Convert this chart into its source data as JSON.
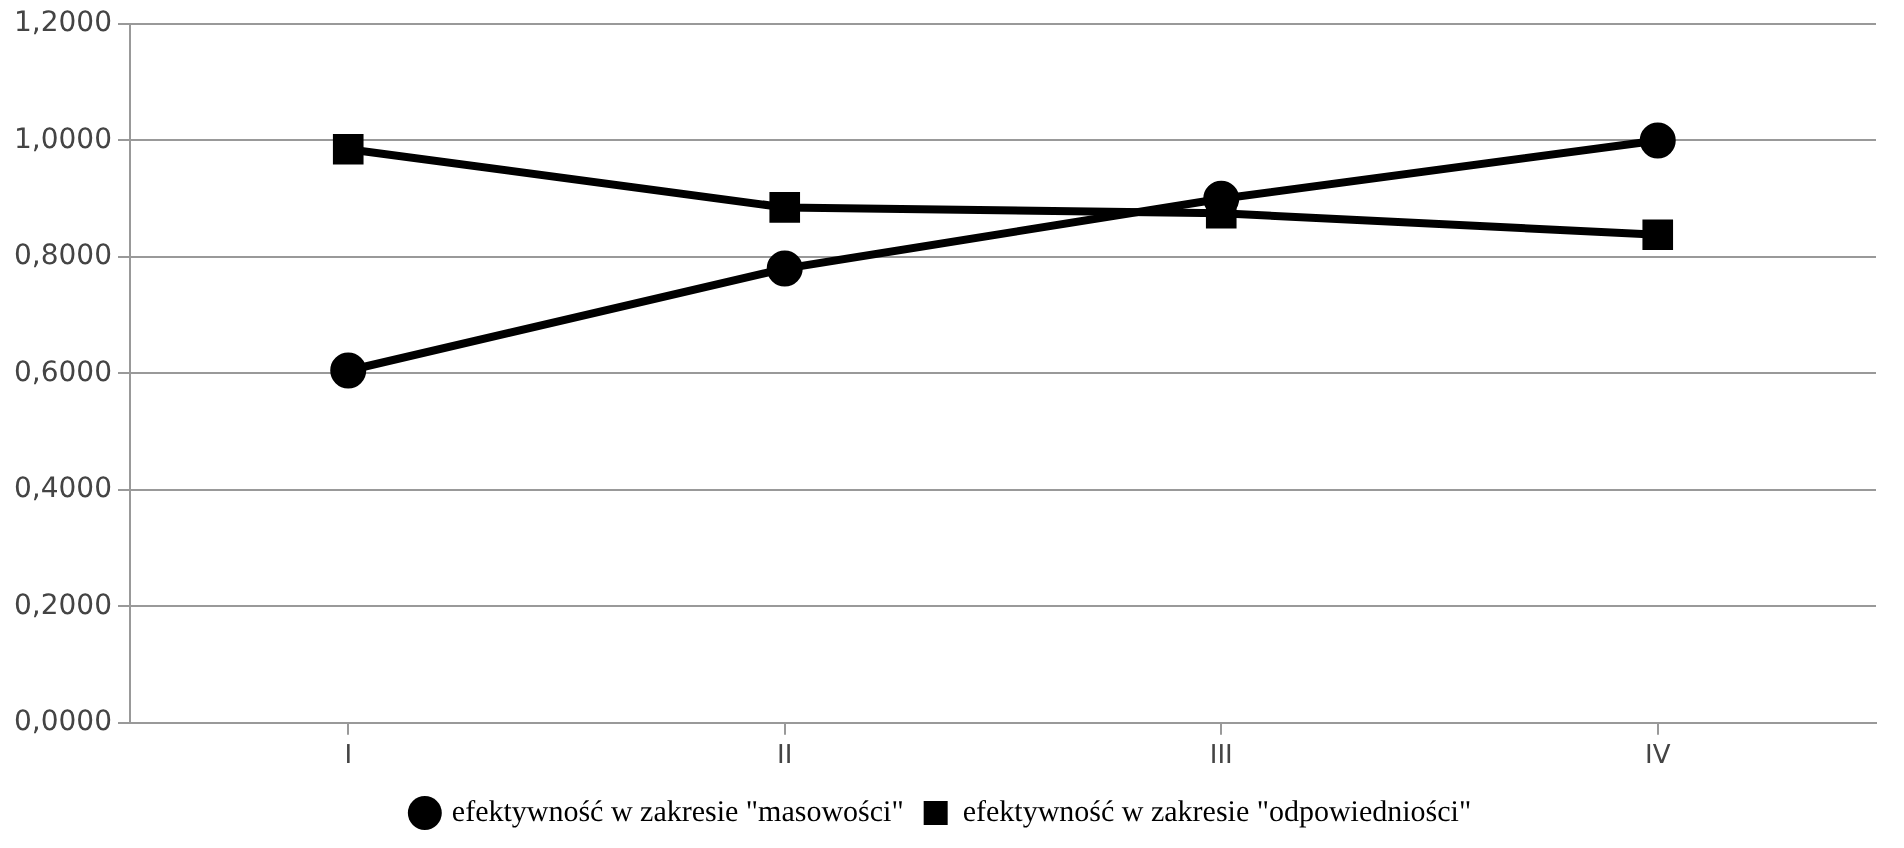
{
  "chart_data": {
    "type": "line",
    "categories": [
      "I",
      "II",
      "III",
      "IV"
    ],
    "series": [
      {
        "name": "efektywność w zakresie \"masowości\"",
        "color": "#000000",
        "marker": "circle",
        "values": [
          0.605,
          0.78,
          0.9,
          1.0
        ]
      },
      {
        "name": "efektywność w zakresie \"odpowiedniości\"",
        "color": "#000000",
        "marker": "square",
        "values": [
          0.985,
          0.885,
          0.875,
          0.838
        ]
      }
    ],
    "ylim": [
      0,
      1.2
    ],
    "yticks": [
      {
        "value": 0,
        "label": "0,0000"
      },
      {
        "value": 0.2,
        "label": "0,2000"
      },
      {
        "value": 0.4,
        "label": "0,4000"
      },
      {
        "value": 0.6,
        "label": "0,6000"
      },
      {
        "value": 0.8,
        "label": "0,8000"
      },
      {
        "value": 1.0,
        "label": "1,0000"
      },
      {
        "value": 1.2,
        "label": "1,2000"
      }
    ],
    "grid": "y",
    "legend": "bottom",
    "line_style": "solid"
  }
}
